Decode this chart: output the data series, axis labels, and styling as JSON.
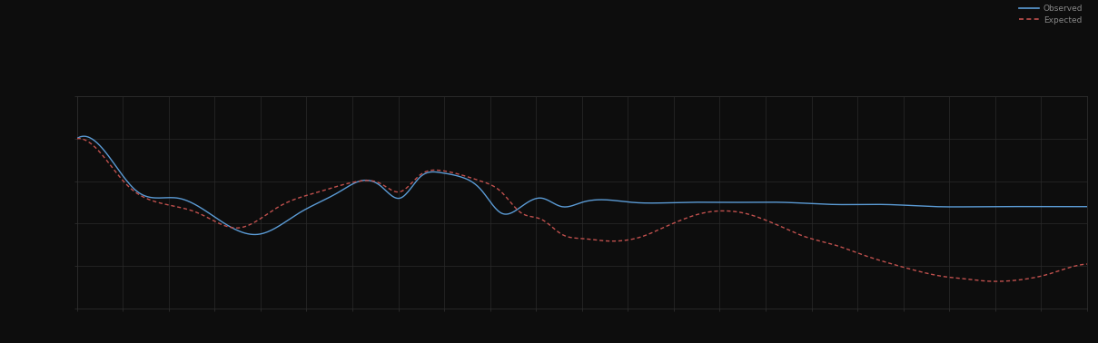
{
  "background_color": "#0d0d0d",
  "axes_background": "#0d0d0d",
  "grid_color": "#2a2a2a",
  "blue_line_color": "#5b9bd5",
  "red_line_color": "#c0504d",
  "legend_label_blue": "Observed",
  "legend_label_red": "Expected",
  "figsize": [
    12.09,
    3.78
  ],
  "dpi": 100,
  "ylim": [
    0,
    10
  ],
  "xlim": [
    0,
    1
  ],
  "blue_x": [
    0.0,
    0.02,
    0.06,
    0.1,
    0.14,
    0.18,
    0.22,
    0.26,
    0.28,
    0.3,
    0.32,
    0.34,
    0.36,
    0.38,
    0.4,
    0.42,
    0.44,
    0.46,
    0.48,
    0.5,
    0.55,
    0.6,
    0.65,
    0.7,
    0.75,
    0.8,
    0.85,
    0.9,
    0.95,
    1.0
  ],
  "blue_y": [
    8.0,
    7.8,
    5.5,
    5.2,
    4.2,
    3.5,
    4.5,
    5.5,
    6.0,
    5.8,
    5.2,
    6.2,
    6.4,
    6.2,
    5.6,
    4.5,
    4.8,
    5.2,
    4.8,
    5.0,
    5.0,
    5.0,
    5.0,
    5.0,
    4.9,
    4.9,
    4.8,
    4.8,
    4.8,
    4.8
  ],
  "red_x": [
    0.0,
    0.02,
    0.05,
    0.08,
    0.12,
    0.16,
    0.2,
    0.24,
    0.28,
    0.3,
    0.32,
    0.34,
    0.36,
    0.38,
    0.4,
    0.42,
    0.44,
    0.46,
    0.48,
    0.5,
    0.52,
    0.54,
    0.56,
    0.58,
    0.6,
    0.62,
    0.64,
    0.66,
    0.68,
    0.7,
    0.72,
    0.75,
    0.78,
    0.8,
    0.83,
    0.86,
    0.88,
    0.9,
    0.92,
    0.94,
    0.96,
    0.98,
    1.0
  ],
  "red_y": [
    8.0,
    7.5,
    5.8,
    5.0,
    4.5,
    3.8,
    4.8,
    5.5,
    6.0,
    5.9,
    5.5,
    6.3,
    6.5,
    6.3,
    6.0,
    5.5,
    4.5,
    4.2,
    3.5,
    3.3,
    3.2,
    3.2,
    3.4,
    3.8,
    4.2,
    4.5,
    4.6,
    4.5,
    4.2,
    3.8,
    3.4,
    3.0,
    2.5,
    2.2,
    1.8,
    1.5,
    1.4,
    1.3,
    1.3,
    1.4,
    1.6,
    1.9,
    2.1
  ]
}
